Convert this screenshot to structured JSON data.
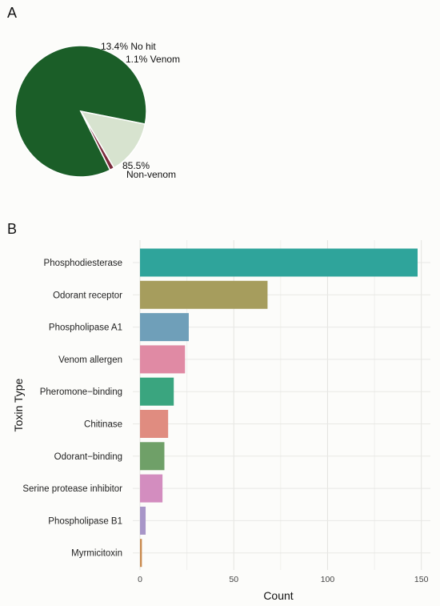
{
  "panels": {
    "a": "A",
    "b": "B"
  },
  "chart_data": [
    {
      "type": "pie",
      "panel": "A",
      "slices": [
        {
          "label": "Non-venom",
          "pct_label": "85.5%",
          "value": 85.5,
          "color": "#1b5e28"
        },
        {
          "label": "No hit",
          "pct_label": "13.4%",
          "value": 13.4,
          "color": "#d7e3cf"
        },
        {
          "label": "Venom",
          "pct_label": "1.1%",
          "value": 1.1,
          "color": "#7a2b3c"
        }
      ],
      "legend": "none"
    },
    {
      "type": "bar",
      "orientation": "horizontal",
      "panel": "B",
      "xlabel": "Count",
      "ylabel": "Toxin Type",
      "xlim": [
        0,
        155
      ],
      "xticks": [
        0,
        50,
        100,
        150
      ],
      "grid": true,
      "legend": "none",
      "categories": [
        "Phosphodiesterase",
        "Odorant receptor",
        "Phospholipase A1",
        "Venom allergen",
        "Pheromone−binding",
        "Chitinase",
        "Odorant−binding",
        "Serine protease inhibitor",
        "Phospholipase B1",
        "Myrmicitoxin"
      ],
      "values": [
        148,
        68,
        26,
        24,
        18,
        15,
        13,
        12,
        3,
        1
      ],
      "colors": [
        "#2fa49b",
        "#a69d5d",
        "#6f9fb9",
        "#e08aa4",
        "#3aa57f",
        "#e08c80",
        "#6fa068",
        "#d38dbf",
        "#a896c8",
        "#c98a4e"
      ]
    }
  ]
}
